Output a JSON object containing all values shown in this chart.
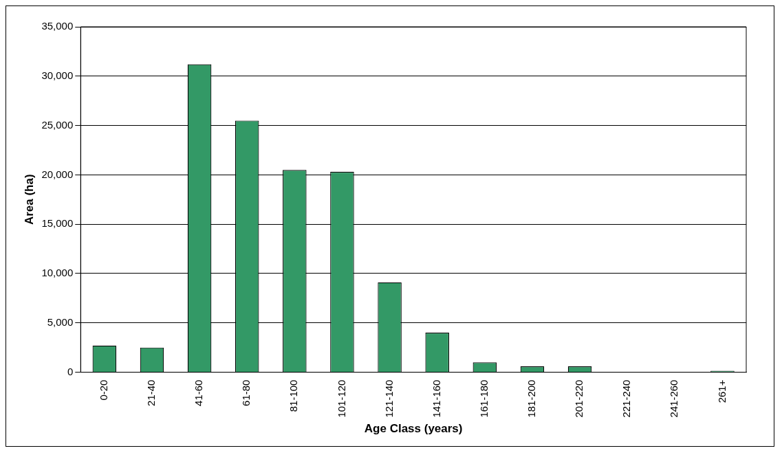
{
  "chart_data": {
    "type": "bar",
    "xlabel": "Age Class (years)",
    "ylabel": "Area (ha)",
    "categories": [
      "0-20",
      "21-40",
      "41-60",
      "61-80",
      "81-100",
      "101-120",
      "121-140",
      "141-160",
      "161-180",
      "181-200",
      "201-220",
      "221-240",
      "241-260",
      "261+"
    ],
    "values": [
      2700,
      2500,
      31200,
      25500,
      20500,
      20300,
      9100,
      4000,
      1000,
      600,
      600,
      0,
      0,
      150
    ],
    "color": "#339966",
    "ylim": [
      0,
      35000
    ],
    "yticks": [
      0,
      {
        "value": 5000,
        "label": "5,000"
      },
      {
        "value": 10000,
        "label": "10,000"
      },
      {
        "value": 15000,
        "label": "15,000"
      },
      {
        "value": 20000,
        "label": "20,000"
      },
      {
        "value": 25000,
        "label": "25,000"
      },
      {
        "value": 30000,
        "label": "30,000"
      },
      {
        "value": 35000,
        "label": "35,000"
      }
    ],
    "grid": "y",
    "legend": false
  }
}
